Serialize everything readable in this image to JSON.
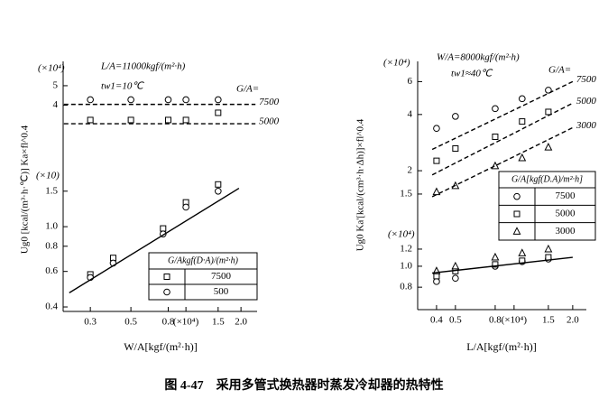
{
  "caption": "图 4-47　采用多管式换热器时蒸发冷却器的热特性",
  "chart_data": [
    {
      "type": "scatter",
      "log_x": true,
      "log_y": true,
      "xlim": [
        0.213,
        2.45
      ],
      "ylim": [
        0.38,
        6.6
      ],
      "xticks": [
        0.3,
        0.5,
        0.8,
        {
          "value": 1,
          "label": "(×10⁴)"
        },
        1.5,
        {
          "value": 2,
          "label": "2.0"
        }
      ],
      "yticks": [
        0.4,
        0.6,
        0.8,
        {
          "value": 1,
          "label": "1.0"
        },
        1.5,
        4,
        5
      ],
      "xlabel": "W/A[kgf/(m²·h)]",
      "ylabel": "Ug0 [kcal/(m³·h·℃)] Ka×fl^0.4",
      "annotations": [
        "L/A=11000kgf/(m²·h)",
        "tw1=10℃",
        "(×10⁴)",
        "(×10)",
        "G/A="
      ],
      "legend_title": "G/Akgf(D·A)/(m²·h)",
      "series": [
        {
          "marker": "circle",
          "color": "#000",
          "x": [
            0.3,
            0.5,
            0.8,
            1.0,
            1.5
          ],
          "values": [
            4.26,
            4.26,
            4.26,
            4.26,
            4.26
          ]
        },
        {
          "marker": "square",
          "color": "#000",
          "x": [
            0.3,
            0.5,
            0.8,
            1.0,
            1.5
          ],
          "values": [
            3.38,
            3.38,
            3.38,
            3.38,
            3.67
          ]
        },
        {
          "marker": "none",
          "style": "dashed",
          "color": "#000",
          "label": "7500",
          "x": [
            0.215,
            2.4
          ],
          "values": [
            4.04,
            4.04
          ]
        },
        {
          "marker": "none",
          "style": "dashed",
          "color": "#000",
          "label": "5000",
          "x": [
            0.215,
            2.4
          ],
          "values": [
            3.24,
            3.24
          ]
        },
        {
          "name": "7500",
          "marker": "square",
          "color": "#000",
          "x": [
            0.3,
            0.4,
            0.75,
            1.0,
            1.5
          ],
          "values": [
            0.58,
            0.7,
            0.98,
            1.32,
            1.62
          ]
        },
        {
          "name": "500",
          "marker": "circle",
          "color": "#000",
          "x": [
            0.3,
            0.4,
            0.75,
            1.0,
            1.5
          ],
          "values": [
            0.56,
            0.66,
            0.92,
            1.25,
            1.5
          ]
        },
        {
          "marker": "none",
          "style": "solid",
          "color": "#000",
          "x": [
            0.23,
            1.95
          ],
          "values": [
            0.47,
            1.55
          ]
        }
      ]
    },
    {
      "type": "scatter",
      "log_x": true,
      "log_y": true,
      "xlim": [
        0.32,
        2.35
      ],
      "ylim": [
        1.2,
        7.7
      ],
      "y2lim": [
        0.63,
        1.54
      ],
      "xticks": [
        0.4,
        0.5,
        0.8,
        {
          "value": 1,
          "label": "(×10⁴)"
        },
        1.5,
        {
          "value": 2,
          "label": "2.0"
        }
      ],
      "yticks": [
        1.5,
        2,
        4,
        6
      ],
      "y2ticks": [
        0.8,
        {
          "value": 1,
          "label": "1.0"
        },
        1.2
      ],
      "xlabel": "L/A[kgf/(m²·h)]",
      "ylabel": "Ug0 Ka'[kcal/(cm³·h·Δh)]×fl^0.4",
      "annotations": [
        "W/A=8000kgf/(m²·h)",
        "tw1≈40℃",
        "(×10⁴)",
        "(×10⁴)",
        "G/A="
      ],
      "legend_title": "G/A[kgf(D.A)/m²·h]",
      "series": [
        {
          "name": "7500",
          "marker": "circle",
          "color": "#000",
          "x": [
            0.4,
            0.5,
            0.8,
            1.1,
            1.5
          ],
          "values": [
            3.37,
            3.91,
            4.3,
            4.86,
            5.4
          ]
        },
        {
          "name": "5000",
          "marker": "square",
          "color": "#000",
          "x": [
            0.4,
            0.5,
            0.8,
            1.1,
            1.5
          ],
          "values": [
            2.26,
            2.63,
            3.04,
            3.67,
            4.13
          ]
        },
        {
          "name": "3000",
          "marker": "triangle",
          "color": "#000",
          "x": [
            0.4,
            0.5,
            0.8,
            1.1,
            1.5
          ],
          "values": [
            1.54,
            1.66,
            2.12,
            2.34,
            2.67
          ]
        },
        {
          "marker": "none",
          "style": "dashed",
          "color": "#000",
          "label": "7500",
          "x": [
            0.38,
            2.0
          ],
          "values": [
            2.6,
            6.0
          ]
        },
        {
          "marker": "none",
          "style": "dashed",
          "color": "#000",
          "label": "5000",
          "x": [
            0.38,
            2.0
          ],
          "values": [
            1.9,
            4.6
          ]
        },
        {
          "marker": "none",
          "style": "dashed",
          "color": "#000",
          "label": "3000",
          "x": [
            0.38,
            2.0
          ],
          "values": [
            1.45,
            3.4
          ]
        },
        {
          "marker": "circle",
          "color": "#000",
          "axis": "y2",
          "x": [
            0.4,
            0.5,
            0.8,
            1.1,
            1.5
          ],
          "values": [
            0.85,
            0.88,
            1.0,
            1.05,
            1.08
          ]
        },
        {
          "marker": "square",
          "color": "#000",
          "axis": "y2",
          "x": [
            0.4,
            0.5,
            0.8,
            1.1,
            1.5
          ],
          "values": [
            0.9,
            0.95,
            1.02,
            1.06,
            1.1
          ]
        },
        {
          "marker": "triangle",
          "color": "#000",
          "axis": "y2",
          "x": [
            0.4,
            0.5,
            0.8,
            1.1,
            1.5
          ],
          "values": [
            0.95,
            1.0,
            1.1,
            1.15,
            1.2
          ]
        },
        {
          "marker": "none",
          "style": "solid",
          "color": "#000",
          "axis": "y2",
          "x": [
            0.38,
            2.0
          ],
          "values": [
            0.93,
            1.1
          ]
        }
      ]
    }
  ]
}
